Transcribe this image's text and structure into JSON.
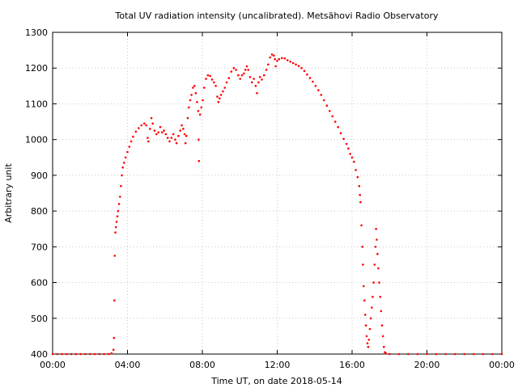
{
  "chart_data": {
    "type": "scatter",
    "title": "Total UV radiation intensity (uncalibrated). Metsähovi Radio Observatory",
    "xlabel": "Time UT, on date 2018-05-14",
    "ylabel": "Arbitrary unit",
    "xlim": [
      0,
      24
    ],
    "ylim": [
      400,
      1300
    ],
    "x_ticks": [
      0,
      4,
      8,
      12,
      16,
      20,
      24
    ],
    "x_tick_labels": [
      "00:00",
      "04:00",
      "08:00",
      "12:00",
      "16:00",
      "20:00",
      "00:00"
    ],
    "y_ticks": [
      400,
      500,
      600,
      700,
      800,
      900,
      1000,
      1100,
      1200,
      1300
    ],
    "y_tick_labels": [
      "400",
      "500",
      "600",
      "700",
      "800",
      "900",
      "1000",
      "1100",
      "1200",
      "1300"
    ],
    "grid": true,
    "series": [
      {
        "color": "#ff0000",
        "x_unit": "hours UT",
        "points": [
          [
            0.0,
            400
          ],
          [
            0.25,
            400
          ],
          [
            0.5,
            400
          ],
          [
            0.75,
            400
          ],
          [
            1.0,
            400
          ],
          [
            1.25,
            400
          ],
          [
            1.5,
            400
          ],
          [
            1.75,
            400
          ],
          [
            2.0,
            400
          ],
          [
            2.25,
            400
          ],
          [
            2.5,
            400
          ],
          [
            2.75,
            400
          ],
          [
            3.0,
            400
          ],
          [
            3.15,
            402
          ],
          [
            3.25,
            412
          ],
          [
            3.28,
            445
          ],
          [
            3.3,
            550
          ],
          [
            3.32,
            675
          ],
          [
            3.35,
            740
          ],
          [
            3.38,
            755
          ],
          [
            3.42,
            770
          ],
          [
            3.46,
            785
          ],
          [
            3.5,
            800
          ],
          [
            3.55,
            820
          ],
          [
            3.6,
            840
          ],
          [
            3.65,
            870
          ],
          [
            3.7,
            900
          ],
          [
            3.75,
            922
          ],
          [
            3.82,
            935
          ],
          [
            3.9,
            950
          ],
          [
            4.0,
            965
          ],
          [
            4.1,
            980
          ],
          [
            4.2,
            995
          ],
          [
            4.3,
            1008
          ],
          [
            4.45,
            1022
          ],
          [
            4.6,
            1032
          ],
          [
            4.75,
            1040
          ],
          [
            4.9,
            1045
          ],
          [
            5.0,
            1040
          ],
          [
            5.08,
            1005
          ],
          [
            5.12,
            995
          ],
          [
            5.2,
            1030
          ],
          [
            5.28,
            1060
          ],
          [
            5.35,
            1045
          ],
          [
            5.45,
            1025
          ],
          [
            5.55,
            1015
          ],
          [
            5.65,
            1020
          ],
          [
            5.75,
            1035
          ],
          [
            5.85,
            1020
          ],
          [
            5.95,
            1025
          ],
          [
            6.05,
            1015
          ],
          [
            6.15,
            1005
          ],
          [
            6.25,
            995
          ],
          [
            6.35,
            1005
          ],
          [
            6.45,
            1015
          ],
          [
            6.55,
            1000
          ],
          [
            6.62,
            990
          ],
          [
            6.72,
            1010
          ],
          [
            6.82,
            1025
          ],
          [
            6.9,
            1040
          ],
          [
            6.98,
            1030
          ],
          [
            7.05,
            1015
          ],
          [
            7.1,
            990
          ],
          [
            7.15,
            1010
          ],
          [
            7.22,
            1060
          ],
          [
            7.28,
            1090
          ],
          [
            7.35,
            1110
          ],
          [
            7.42,
            1125
          ],
          [
            7.5,
            1145
          ],
          [
            7.58,
            1150
          ],
          [
            7.65,
            1130
          ],
          [
            7.72,
            1105
          ],
          [
            7.78,
            1080
          ],
          [
            7.8,
            1000
          ],
          [
            7.82,
            940
          ],
          [
            7.88,
            1070
          ],
          [
            7.95,
            1090
          ],
          [
            8.02,
            1110
          ],
          [
            8.1,
            1145
          ],
          [
            8.2,
            1170
          ],
          [
            8.3,
            1180
          ],
          [
            8.42,
            1178
          ],
          [
            8.52,
            1168
          ],
          [
            8.62,
            1160
          ],
          [
            8.72,
            1150
          ],
          [
            8.8,
            1120
          ],
          [
            8.86,
            1105
          ],
          [
            8.92,
            1115
          ],
          [
            9.0,
            1125
          ],
          [
            9.1,
            1135
          ],
          [
            9.2,
            1145
          ],
          [
            9.3,
            1160
          ],
          [
            9.42,
            1172
          ],
          [
            9.55,
            1190
          ],
          [
            9.68,
            1200
          ],
          [
            9.8,
            1195
          ],
          [
            9.92,
            1180
          ],
          [
            10.02,
            1170
          ],
          [
            10.12,
            1180
          ],
          [
            10.22,
            1185
          ],
          [
            10.3,
            1195
          ],
          [
            10.38,
            1205
          ],
          [
            10.45,
            1195
          ],
          [
            10.55,
            1175
          ],
          [
            10.65,
            1160
          ],
          [
            10.75,
            1170
          ],
          [
            10.85,
            1150
          ],
          [
            10.92,
            1130
          ],
          [
            11.0,
            1160
          ],
          [
            11.08,
            1175
          ],
          [
            11.18,
            1168
          ],
          [
            11.3,
            1180
          ],
          [
            11.42,
            1195
          ],
          [
            11.52,
            1210
          ],
          [
            11.62,
            1230
          ],
          [
            11.72,
            1238
          ],
          [
            11.82,
            1235
          ],
          [
            11.88,
            1225
          ],
          [
            11.92,
            1205
          ],
          [
            12.0,
            1220
          ],
          [
            12.1,
            1225
          ],
          [
            12.25,
            1228
          ],
          [
            12.4,
            1227
          ],
          [
            12.55,
            1222
          ],
          [
            12.7,
            1218
          ],
          [
            12.85,
            1214
          ],
          [
            13.0,
            1210
          ],
          [
            13.15,
            1206
          ],
          [
            13.3,
            1200
          ],
          [
            13.45,
            1192
          ],
          [
            13.6,
            1182
          ],
          [
            13.75,
            1172
          ],
          [
            13.9,
            1162
          ],
          [
            14.05,
            1150
          ],
          [
            14.2,
            1138
          ],
          [
            14.35,
            1125
          ],
          [
            14.5,
            1110
          ],
          [
            14.65,
            1095
          ],
          [
            14.8,
            1080
          ],
          [
            14.95,
            1065
          ],
          [
            15.1,
            1050
          ],
          [
            15.25,
            1035
          ],
          [
            15.4,
            1018
          ],
          [
            15.55,
            1002
          ],
          [
            15.7,
            988
          ],
          [
            15.8,
            975
          ],
          [
            15.9,
            960
          ],
          [
            16.0,
            950
          ],
          [
            16.1,
            938
          ],
          [
            16.2,
            915
          ],
          [
            16.3,
            895
          ],
          [
            16.38,
            870
          ],
          [
            16.42,
            845
          ],
          [
            16.45,
            825
          ],
          [
            16.5,
            760
          ],
          [
            16.55,
            700
          ],
          [
            16.58,
            650
          ],
          [
            16.62,
            590
          ],
          [
            16.66,
            550
          ],
          [
            16.7,
            510
          ],
          [
            16.74,
            480
          ],
          [
            16.78,
            450
          ],
          [
            16.82,
            430
          ],
          [
            16.86,
            420
          ],
          [
            16.9,
            440
          ],
          [
            16.95,
            470
          ],
          [
            17.0,
            500
          ],
          [
            17.05,
            530
          ],
          [
            17.1,
            560
          ],
          [
            17.15,
            600
          ],
          [
            17.2,
            650
          ],
          [
            17.25,
            700
          ],
          [
            17.28,
            750
          ],
          [
            17.32,
            720
          ],
          [
            17.36,
            680
          ],
          [
            17.4,
            640
          ],
          [
            17.45,
            600
          ],
          [
            17.5,
            560
          ],
          [
            17.55,
            520
          ],
          [
            17.6,
            480
          ],
          [
            17.65,
            450
          ],
          [
            17.7,
            420
          ],
          [
            17.75,
            405
          ],
          [
            17.8,
            402
          ],
          [
            18.0,
            400
          ],
          [
            18.5,
            400
          ],
          [
            19.0,
            400
          ],
          [
            19.5,
            400
          ],
          [
            20.0,
            400
          ],
          [
            20.5,
            400
          ],
          [
            21.0,
            400
          ],
          [
            21.5,
            400
          ],
          [
            22.0,
            400
          ],
          [
            22.5,
            400
          ],
          [
            23.0,
            400
          ],
          [
            23.5,
            400
          ],
          [
            24.0,
            400
          ]
        ]
      }
    ]
  }
}
